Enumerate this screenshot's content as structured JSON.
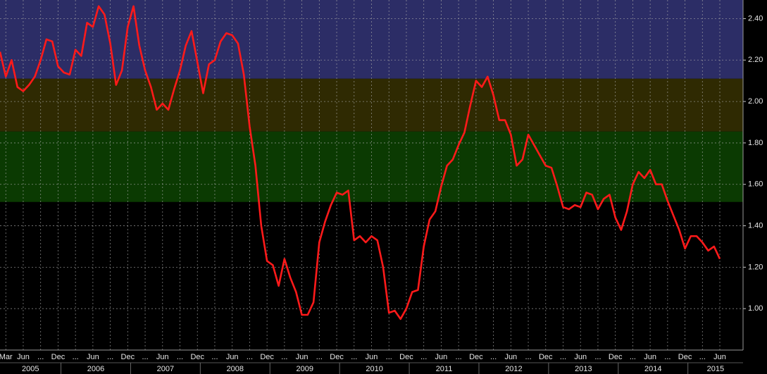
{
  "chart_data": {
    "type": "line",
    "x": [
      "2005-02",
      "2005-03",
      "2005-04",
      "2005-05",
      "2005-06",
      "2005-07",
      "2005-08",
      "2005-09",
      "2005-10",
      "2005-11",
      "2005-12",
      "2006-01",
      "2006-02",
      "2006-03",
      "2006-04",
      "2006-05",
      "2006-06",
      "2006-07",
      "2006-08",
      "2006-09",
      "2006-10",
      "2006-11",
      "2006-12",
      "2007-01",
      "2007-02",
      "2007-03",
      "2007-04",
      "2007-05",
      "2007-06",
      "2007-07",
      "2007-08",
      "2007-09",
      "2007-10",
      "2007-11",
      "2007-12",
      "2008-01",
      "2008-02",
      "2008-03",
      "2008-04",
      "2008-05",
      "2008-06",
      "2008-07",
      "2008-08",
      "2008-09",
      "2008-10",
      "2008-11",
      "2008-12",
      "2009-01",
      "2009-02",
      "2009-03",
      "2009-04",
      "2009-05",
      "2009-06",
      "2009-07",
      "2009-08",
      "2009-09",
      "2009-10",
      "2009-11",
      "2009-12",
      "2010-01",
      "2010-02",
      "2010-03",
      "2010-04",
      "2010-05",
      "2010-06",
      "2010-07",
      "2010-08",
      "2010-09",
      "2010-10",
      "2010-11",
      "2010-12",
      "2011-01",
      "2011-02",
      "2011-03",
      "2011-04",
      "2011-05",
      "2011-06",
      "2011-07",
      "2011-08",
      "2011-09",
      "2011-10",
      "2011-11",
      "2011-12",
      "2012-01",
      "2012-02",
      "2012-03",
      "2012-04",
      "2012-05",
      "2012-06",
      "2012-07",
      "2012-08",
      "2012-09",
      "2012-10",
      "2012-11",
      "2012-12",
      "2013-01",
      "2013-02",
      "2013-03",
      "2013-04",
      "2013-05",
      "2013-06",
      "2013-07",
      "2013-08",
      "2013-09",
      "2013-10",
      "2013-11",
      "2013-12",
      "2014-01",
      "2014-02",
      "2014-03",
      "2014-04",
      "2014-05",
      "2014-06",
      "2014-07",
      "2014-08",
      "2014-09",
      "2014-10",
      "2014-11",
      "2014-12",
      "2015-01",
      "2015-02",
      "2015-03",
      "2015-04",
      "2015-05",
      "2015-06"
    ],
    "series": [
      {
        "color": "#ff1a1a",
        "values": [
          2.24,
          2.12,
          2.2,
          2.07,
          2.05,
          2.08,
          2.12,
          2.2,
          2.3,
          2.29,
          2.17,
          2.14,
          2.13,
          2.25,
          2.22,
          2.38,
          2.36,
          2.46,
          2.42,
          2.28,
          2.08,
          2.15,
          2.36,
          2.46,
          2.27,
          2.15,
          2.07,
          1.96,
          1.99,
          1.96,
          2.06,
          2.15,
          2.27,
          2.34,
          2.19,
          2.04,
          2.18,
          2.2,
          2.29,
          2.33,
          2.32,
          2.28,
          2.13,
          1.88,
          1.69,
          1.4,
          1.23,
          1.21,
          1.11,
          1.24,
          1.15,
          1.08,
          0.97,
          0.97,
          1.03,
          1.32,
          1.42,
          1.5,
          1.56,
          1.55,
          1.57,
          1.33,
          1.35,
          1.32,
          1.35,
          1.33,
          1.2,
          0.98,
          0.99,
          0.95,
          1.0,
          1.08,
          1.09,
          1.3,
          1.43,
          1.47,
          1.59,
          1.69,
          1.72,
          1.79,
          1.85,
          1.98,
          2.1,
          2.07,
          2.12,
          2.03,
          1.91,
          1.91,
          1.84,
          1.69,
          1.72,
          1.84,
          1.79,
          1.74,
          1.69,
          1.68,
          1.59,
          1.49,
          1.48,
          1.5,
          1.49,
          1.56,
          1.55,
          1.48,
          1.53,
          1.55,
          1.44,
          1.38,
          1.47,
          1.6,
          1.66,
          1.63,
          1.67,
          1.6,
          1.6,
          1.52,
          1.45,
          1.38,
          1.29,
          1.35,
          1.35,
          1.32,
          1.28,
          1.3,
          1.24
        ]
      }
    ],
    "xlim": [
      "2005-02",
      "2015-10"
    ],
    "xticks": [
      {
        "value": "2005-03",
        "label": "Mar"
      },
      {
        "value": "2005-06",
        "label": "Jun"
      },
      {
        "value": "2005-09",
        "label": "..."
      },
      {
        "value": "2005-12",
        "label": "Dec"
      },
      {
        "value": "2006-03",
        "label": "..."
      },
      {
        "value": "2006-06",
        "label": "Jun"
      },
      {
        "value": "2006-09",
        "label": "..."
      },
      {
        "value": "2006-12",
        "label": "Dec"
      },
      {
        "value": "2007-03",
        "label": "..."
      },
      {
        "value": "2007-06",
        "label": "Jun"
      },
      {
        "value": "2007-09",
        "label": "..."
      },
      {
        "value": "2007-12",
        "label": "Dec"
      },
      {
        "value": "2008-03",
        "label": "..."
      },
      {
        "value": "2008-06",
        "label": "Jun"
      },
      {
        "value": "2008-09",
        "label": "..."
      },
      {
        "value": "2008-12",
        "label": "Dec"
      },
      {
        "value": "2009-03",
        "label": "..."
      },
      {
        "value": "2009-06",
        "label": "Jun"
      },
      {
        "value": "2009-09",
        "label": "..."
      },
      {
        "value": "2009-12",
        "label": "Dec"
      },
      {
        "value": "2010-03",
        "label": "..."
      },
      {
        "value": "2010-06",
        "label": "Jun"
      },
      {
        "value": "2010-09",
        "label": "..."
      },
      {
        "value": "2010-12",
        "label": "Dec"
      },
      {
        "value": "2011-03",
        "label": "..."
      },
      {
        "value": "2011-06",
        "label": "Jun"
      },
      {
        "value": "2011-09",
        "label": "..."
      },
      {
        "value": "2011-12",
        "label": "Dec"
      },
      {
        "value": "2012-03",
        "label": "..."
      },
      {
        "value": "2012-06",
        "label": "Jun"
      },
      {
        "value": "2012-09",
        "label": "..."
      },
      {
        "value": "2012-12",
        "label": "Dec"
      },
      {
        "value": "2013-03",
        "label": "..."
      },
      {
        "value": "2013-06",
        "label": "Jun"
      },
      {
        "value": "2013-09",
        "label": "..."
      },
      {
        "value": "2013-12",
        "label": "Dec"
      },
      {
        "value": "2014-03",
        "label": "..."
      },
      {
        "value": "2014-06",
        "label": "Jun"
      },
      {
        "value": "2014-09",
        "label": "..."
      },
      {
        "value": "2014-12",
        "label": "Dec"
      },
      {
        "value": "2015-03",
        "label": "..."
      },
      {
        "value": "2015-06",
        "label": "Jun"
      }
    ],
    "years": [
      "2005",
      "2006",
      "2007",
      "2008",
      "2009",
      "2010",
      "2011",
      "2012",
      "2013",
      "2014",
      "2015"
    ],
    "ylim": [
      0.8,
      2.49
    ],
    "yticks": [
      {
        "value": 1,
        "label": "1.00"
      },
      {
        "value": 1.2,
        "label": "1.20"
      },
      {
        "value": 1.4,
        "label": "1.40"
      },
      {
        "value": 1.6,
        "label": "1.60"
      },
      {
        "value": 1.8,
        "label": "1.80"
      },
      {
        "value": 2,
        "label": "2.00"
      },
      {
        "value": 2.2,
        "label": "2.20"
      },
      {
        "value": 2.4,
        "label": "2.40"
      }
    ],
    "bands": [
      {
        "from": 2.11,
        "to": 2.49,
        "color": "#2c2d66"
      },
      {
        "from": 1.855,
        "to": 2.11,
        "color": "#2f2a02"
      },
      {
        "from": 1.515,
        "to": 1.855,
        "color": "#0b3a02"
      }
    ],
    "grid": true
  }
}
